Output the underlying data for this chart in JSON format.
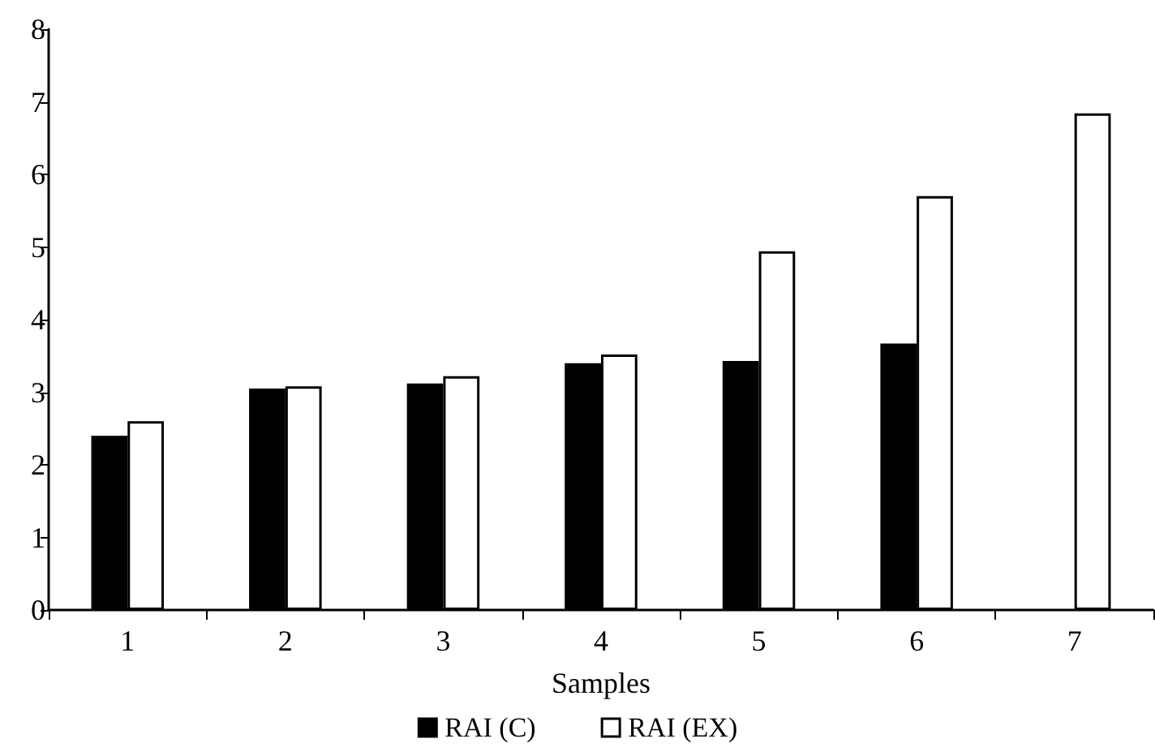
{
  "chart_data": {
    "type": "bar",
    "xlabel": "Samples",
    "categories": [
      "1",
      "2",
      "3",
      "4",
      "5",
      "6",
      "7"
    ],
    "series": [
      {
        "name": "RAI (C)",
        "color": "#000000",
        "values": [
          2.4,
          3.05,
          3.12,
          3.4,
          3.43,
          3.67,
          null
        ]
      },
      {
        "name": "RAI (EX)",
        "color": "#ffffff",
        "values": [
          2.6,
          3.08,
          3.22,
          3.52,
          4.94,
          5.7,
          6.84
        ]
      }
    ],
    "ylim": [
      0,
      8
    ],
    "yticks": [
      0,
      1,
      2,
      3,
      4,
      5,
      6,
      7,
      8
    ],
    "grid": false,
    "legend": "bottom"
  }
}
